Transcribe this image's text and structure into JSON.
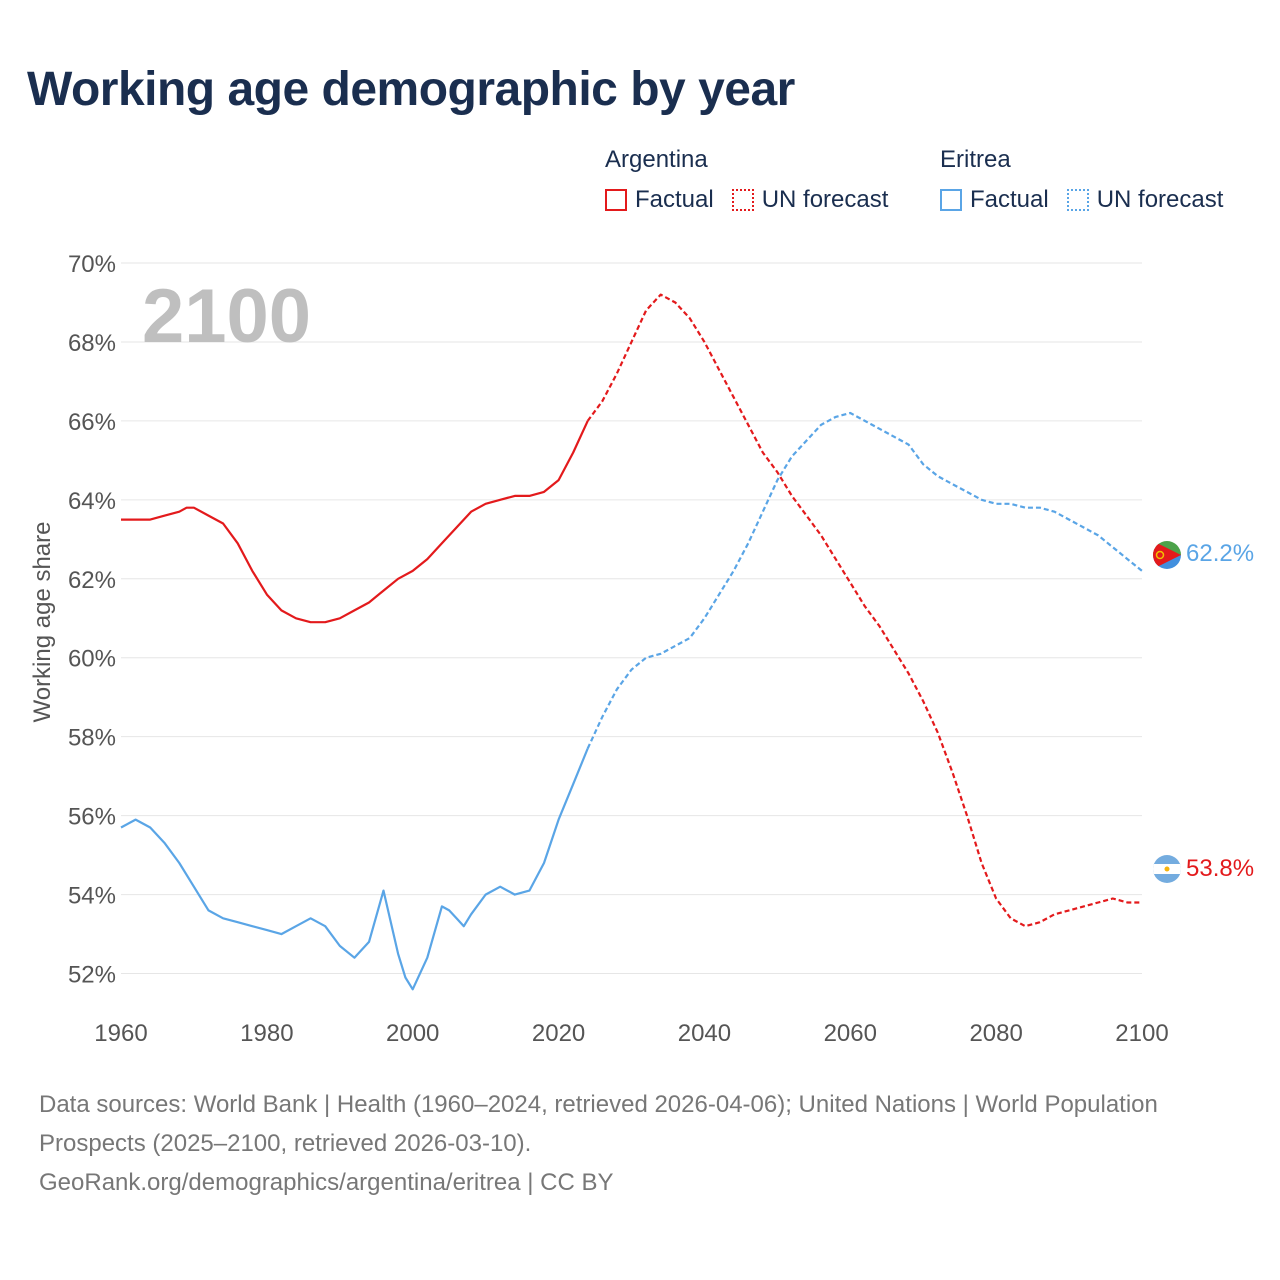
{
  "title": "Working age demographic by year",
  "legend": {
    "groups": [
      {
        "name": "Argentina",
        "factual_label": "Factual",
        "forecast_label": "UN forecast",
        "color": "#e31a1c"
      },
      {
        "name": "Eritrea",
        "factual_label": "Factual",
        "forecast_label": "UN forecast",
        "color": "#5aa5e6"
      }
    ]
  },
  "chart_data": {
    "type": "line",
    "title": "Working age demographic by year",
    "xlabel": "",
    "ylabel": "Working age share",
    "xlim": [
      1960,
      2100
    ],
    "ylim": [
      51,
      70
    ],
    "x_ticks": [
      1960,
      1980,
      2000,
      2020,
      2040,
      2060,
      2080,
      2100
    ],
    "x_tick_labels": [
      "1960",
      "1980",
      "2000",
      "2020",
      "2040",
      "2060",
      "2080",
      "2100"
    ],
    "y_ticks": [
      52,
      54,
      56,
      58,
      60,
      62,
      64,
      66,
      68,
      70
    ],
    "y_tick_labels": [
      "52%",
      "54%",
      "56%",
      "58%",
      "60%",
      "62%",
      "64%",
      "66%",
      "68%",
      "70%"
    ],
    "current_year_label": "2100",
    "series": [
      {
        "name": "Argentina",
        "color": "#e31a1c",
        "end_label": "53.8%",
        "flag": "argentina-flag",
        "factual": [
          [
            1960,
            63.5
          ],
          [
            1964,
            63.5
          ],
          [
            1966,
            63.6
          ],
          [
            1968,
            63.7
          ],
          [
            1969,
            63.8
          ],
          [
            1970,
            63.8
          ],
          [
            1972,
            63.6
          ],
          [
            1974,
            63.4
          ],
          [
            1976,
            62.9
          ],
          [
            1978,
            62.2
          ],
          [
            1980,
            61.6
          ],
          [
            1982,
            61.2
          ],
          [
            1984,
            61.0
          ],
          [
            1986,
            60.9
          ],
          [
            1988,
            60.9
          ],
          [
            1990,
            61.0
          ],
          [
            1992,
            61.2
          ],
          [
            1994,
            61.4
          ],
          [
            1996,
            61.7
          ],
          [
            1998,
            62.0
          ],
          [
            2000,
            62.2
          ],
          [
            2002,
            62.5
          ],
          [
            2004,
            62.9
          ],
          [
            2006,
            63.3
          ],
          [
            2008,
            63.7
          ],
          [
            2010,
            63.9
          ],
          [
            2012,
            64.0
          ],
          [
            2014,
            64.1
          ],
          [
            2016,
            64.1
          ],
          [
            2018,
            64.2
          ],
          [
            2020,
            64.5
          ],
          [
            2022,
            65.2
          ],
          [
            2024,
            66.0
          ]
        ],
        "forecast": [
          [
            2024,
            66.0
          ],
          [
            2026,
            66.5
          ],
          [
            2028,
            67.2
          ],
          [
            2030,
            68.0
          ],
          [
            2032,
            68.8
          ],
          [
            2034,
            69.2
          ],
          [
            2036,
            69.0
          ],
          [
            2038,
            68.6
          ],
          [
            2040,
            68.0
          ],
          [
            2042,
            67.3
          ],
          [
            2044,
            66.6
          ],
          [
            2046,
            65.9
          ],
          [
            2048,
            65.2
          ],
          [
            2050,
            64.7
          ],
          [
            2052,
            64.1
          ],
          [
            2054,
            63.6
          ],
          [
            2056,
            63.1
          ],
          [
            2058,
            62.5
          ],
          [
            2060,
            61.9
          ],
          [
            2062,
            61.3
          ],
          [
            2064,
            60.8
          ],
          [
            2066,
            60.2
          ],
          [
            2068,
            59.6
          ],
          [
            2070,
            58.9
          ],
          [
            2072,
            58.1
          ],
          [
            2074,
            57.1
          ],
          [
            2076,
            56.0
          ],
          [
            2078,
            54.8
          ],
          [
            2080,
            53.9
          ],
          [
            2082,
            53.4
          ],
          [
            2084,
            53.2
          ],
          [
            2086,
            53.3
          ],
          [
            2088,
            53.5
          ],
          [
            2090,
            53.6
          ],
          [
            2092,
            53.7
          ],
          [
            2094,
            53.8
          ],
          [
            2096,
            53.9
          ],
          [
            2098,
            53.8
          ],
          [
            2100,
            53.8
          ]
        ]
      },
      {
        "name": "Eritrea",
        "color": "#5aa5e6",
        "end_label": "62.2%",
        "flag": "eritrea-flag",
        "factual": [
          [
            1960,
            55.7
          ],
          [
            1962,
            55.9
          ],
          [
            1964,
            55.7
          ],
          [
            1966,
            55.3
          ],
          [
            1968,
            54.8
          ],
          [
            1970,
            54.2
          ],
          [
            1972,
            53.6
          ],
          [
            1974,
            53.4
          ],
          [
            1976,
            53.3
          ],
          [
            1978,
            53.2
          ],
          [
            1980,
            53.1
          ],
          [
            1982,
            53.0
          ],
          [
            1984,
            53.2
          ],
          [
            1986,
            53.4
          ],
          [
            1988,
            53.2
          ],
          [
            1990,
            52.7
          ],
          [
            1992,
            52.4
          ],
          [
            1994,
            52.8
          ],
          [
            1996,
            54.1
          ],
          [
            1998,
            52.5
          ],
          [
            1999,
            51.9
          ],
          [
            2000,
            51.6
          ],
          [
            2002,
            52.4
          ],
          [
            2004,
            53.7
          ],
          [
            2005,
            53.6
          ],
          [
            2006,
            53.4
          ],
          [
            2007,
            53.2
          ],
          [
            2008,
            53.5
          ],
          [
            2010,
            54.0
          ],
          [
            2012,
            54.2
          ],
          [
            2014,
            54.0
          ],
          [
            2016,
            54.1
          ],
          [
            2018,
            54.8
          ],
          [
            2020,
            55.9
          ],
          [
            2022,
            56.8
          ],
          [
            2024,
            57.7
          ]
        ],
        "forecast": [
          [
            2024,
            57.7
          ],
          [
            2026,
            58.5
          ],
          [
            2028,
            59.2
          ],
          [
            2030,
            59.7
          ],
          [
            2032,
            60.0
          ],
          [
            2034,
            60.1
          ],
          [
            2036,
            60.3
          ],
          [
            2038,
            60.5
          ],
          [
            2040,
            61.0
          ],
          [
            2042,
            61.6
          ],
          [
            2044,
            62.2
          ],
          [
            2046,
            62.9
          ],
          [
            2048,
            63.7
          ],
          [
            2050,
            64.5
          ],
          [
            2052,
            65.1
          ],
          [
            2054,
            65.5
          ],
          [
            2056,
            65.9
          ],
          [
            2058,
            66.1
          ],
          [
            2060,
            66.2
          ],
          [
            2062,
            66.0
          ],
          [
            2064,
            65.8
          ],
          [
            2066,
            65.6
          ],
          [
            2068,
            65.4
          ],
          [
            2070,
            64.9
          ],
          [
            2072,
            64.6
          ],
          [
            2074,
            64.4
          ],
          [
            2076,
            64.2
          ],
          [
            2078,
            64.0
          ],
          [
            2080,
            63.9
          ],
          [
            2082,
            63.9
          ],
          [
            2084,
            63.8
          ],
          [
            2086,
            63.8
          ],
          [
            2088,
            63.7
          ],
          [
            2090,
            63.5
          ],
          [
            2092,
            63.3
          ],
          [
            2094,
            63.1
          ],
          [
            2096,
            62.8
          ],
          [
            2098,
            62.5
          ],
          [
            2100,
            62.2
          ]
        ]
      }
    ]
  },
  "footer": {
    "line1": "Data sources: World Bank | Health (1960–2024, retrieved 2026-04-06); United Nations | World Population Prospects (2025–2100, retrieved 2026-03-10).",
    "line2": "GeoRank.org/demographics/argentina/eritrea | CC BY"
  }
}
